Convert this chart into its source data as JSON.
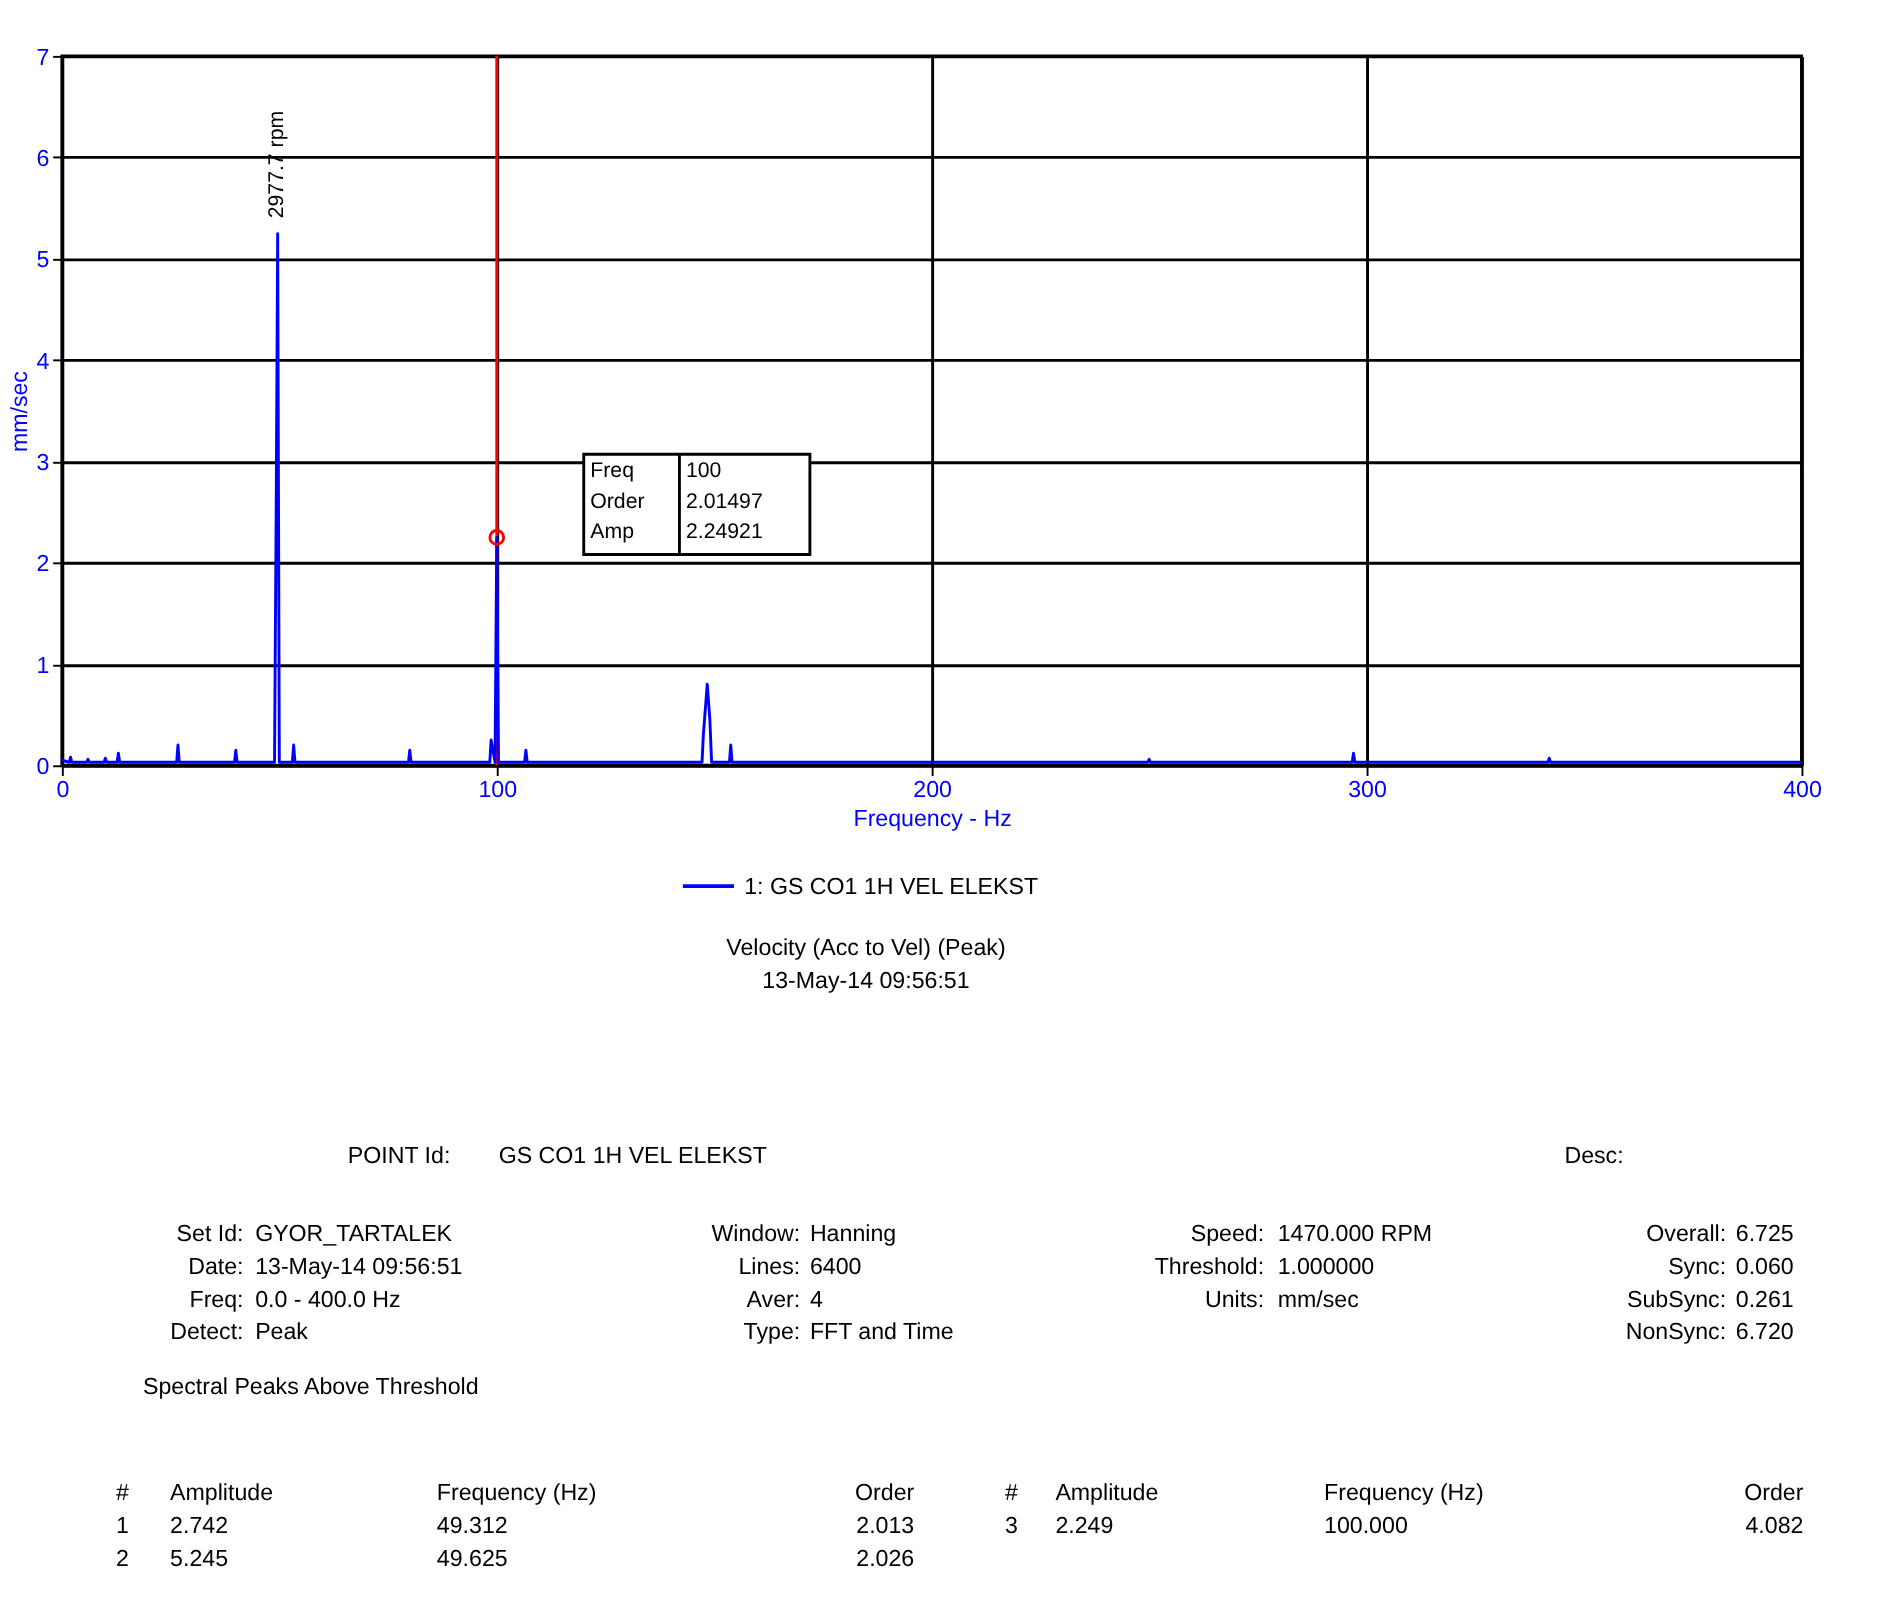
{
  "chart_data": {
    "type": "line",
    "xlabel": "Frequency - Hz",
    "ylabel": "mm/sec",
    "xlim": [
      0,
      400
    ],
    "xticks": [
      0,
      100,
      200,
      300,
      400
    ],
    "ylim": [
      0,
      7
    ],
    "yticks": [
      0,
      1,
      2,
      3,
      4,
      5,
      6,
      7
    ],
    "grid": true,
    "legend": "bottom",
    "marker": "none",
    "line_style": "solid",
    "series": [
      {
        "name": "1: GS CO1 1H VEL ELEKST",
        "color": "#0000ff",
        "x": [
          0,
          1.7,
          2,
          2.3,
          5.7,
          6,
          6.3,
          9.7,
          10,
          10.3,
          12.7,
          13,
          13.3,
          26.4,
          26.7,
          27,
          39.7,
          40,
          40.3,
          48.9,
          49.312,
          49.625,
          50,
          53,
          53.3,
          53.6,
          79.7,
          80,
          80.3,
          98.4,
          98.7,
          99.6,
          100,
          100.4,
          106.4,
          106.7,
          107,
          147.2,
          147.5,
          148.4,
          149,
          149.4,
          153.5,
          153.8,
          154.1,
          249.7,
          250,
          250.3,
          296.7,
          297,
          297.3,
          341.7,
          342,
          342.3,
          400
        ],
        "values": [
          0.05,
          0.03,
          0.08,
          0.03,
          0.03,
          0.06,
          0.03,
          0.03,
          0.07,
          0.03,
          0.03,
          0.12,
          0.03,
          0.03,
          0.2,
          0.03,
          0.03,
          0.15,
          0.03,
          0.03,
          2.742,
          5.245,
          0.03,
          0.03,
          0.2,
          0.03,
          0.03,
          0.15,
          0.03,
          0.03,
          0.25,
          0.03,
          2.249,
          0.03,
          0.03,
          0.15,
          0.03,
          0.03,
          0.3,
          0.8,
          0.45,
          0.03,
          0.03,
          0.2,
          0.03,
          0.03,
          0.06,
          0.03,
          0.03,
          0.12,
          0.03,
          0.03,
          0.07,
          0.03,
          0.03
        ]
      },
      {
        "type": "scatter",
        "color": "#ff0000",
        "marker": "circle",
        "x": [
          100
        ],
        "values": [
          2.249
        ]
      }
    ],
    "ref_lines": [
      {
        "axis": "x",
        "value": 100,
        "color": "#ff0000"
      }
    ],
    "annotations": [
      {
        "text": "2977.7 rpm",
        "x": 49.625,
        "y": 5.245
      },
      "Freq",
      "100",
      "Order",
      "2.01497",
      "Amp",
      "2.24921",
      "Velocity (Acc to Vel) (Peak)",
      "13-May-14 09:56:51",
      "POINT Id:",
      "GS CO1 1H VEL ELEKST",
      "Desc:",
      "Set Id:",
      "GYOR_TARTALEK",
      "Date:",
      "13-May-14 09:56:51",
      "Freq:",
      "0.0 - 400.0 Hz",
      "Detect:",
      "Peak",
      "Window:",
      "Hanning",
      "Lines:",
      "6400",
      "Aver:",
      "4",
      "Type:",
      "FFT and Time",
      "Speed:",
      "1470.000 RPM",
      "Threshold:",
      "1.000000",
      "Units:",
      "mm/sec",
      "Overall:",
      "6.725",
      "Sync:",
      "0.060",
      "SubSync:",
      "0.261",
      "NonSync:",
      "6.720",
      "Spectral Peaks Above Threshold",
      "#",
      "Amplitude",
      "Frequency (Hz)",
      "Order",
      "#",
      "Amplitude",
      "Frequency (Hz)",
      "Order",
      "1",
      "2.742",
      "49.312",
      "2.013",
      "3",
      "2.249",
      "100.000",
      "4.082",
      "2",
      "5.245",
      "49.625",
      "2.026"
    ]
  }
}
